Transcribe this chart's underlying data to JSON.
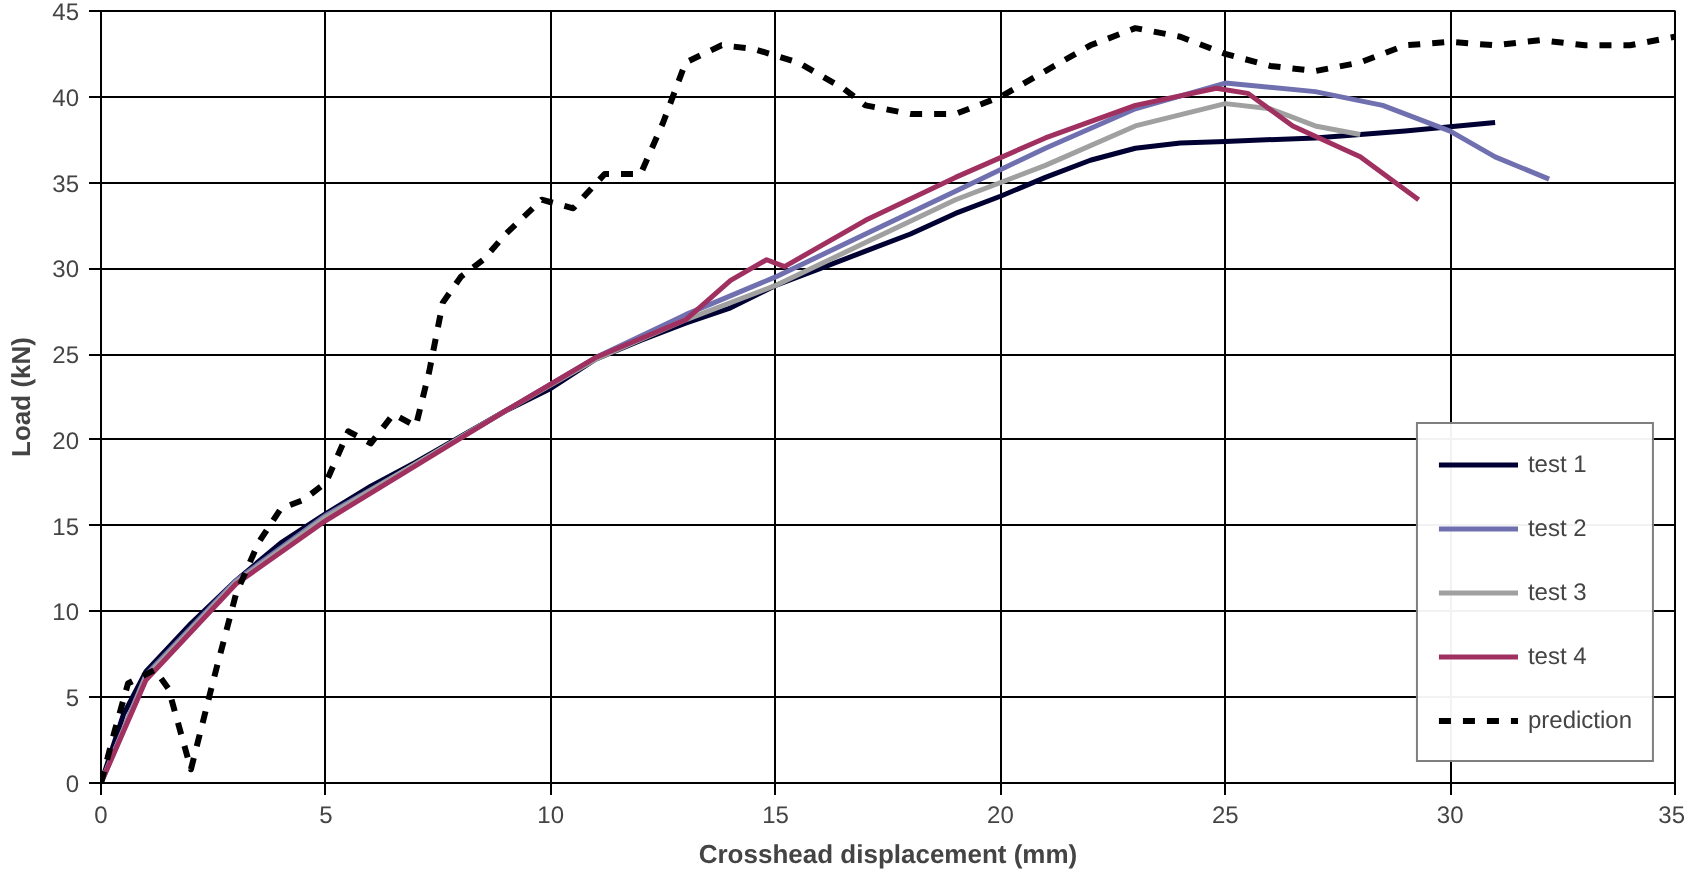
{
  "chart_data": {
    "type": "line",
    "xlabel": "Crosshead displacement (mm)",
    "ylabel": "Load (kN)",
    "xlim": [
      0,
      35
    ],
    "xticks": [
      0,
      5,
      10,
      15,
      20,
      25,
      30,
      35
    ],
    "ylim": [
      0,
      45
    ],
    "yticks": [
      0,
      5,
      10,
      15,
      20,
      25,
      30,
      35,
      40,
      45
    ],
    "grid": true,
    "legend": "bottom right",
    "marker": "none",
    "series": [
      {
        "name": "test 1",
        "color": "#000033",
        "line_style": "solid",
        "x": [
          0,
          0.5,
          1,
          2,
          3,
          4,
          5,
          6,
          7,
          8,
          9,
          10,
          11,
          12,
          13,
          14,
          15,
          16,
          17,
          18,
          19,
          20,
          21,
          22,
          23,
          24,
          25,
          27,
          29,
          31
        ],
        "values": [
          0,
          4,
          6.5,
          9.3,
          11.8,
          14,
          15.7,
          17.3,
          18.7,
          20.2,
          21.7,
          23,
          24.7,
          25.8,
          26.8,
          27.7,
          29,
          30,
          31,
          32,
          33.2,
          34.2,
          35.3,
          36.3,
          37,
          37.3,
          37.4,
          37.6,
          38,
          38.5
        ]
      },
      {
        "name": "test 2",
        "color": "#7070b0",
        "line_style": "solid",
        "x": [
          0,
          1,
          3,
          5,
          7,
          9,
          11,
          13,
          15,
          17,
          19,
          21,
          23,
          25,
          27,
          28.5,
          30,
          31,
          32.2
        ],
        "values": [
          0,
          6.3,
          11.8,
          15.6,
          18.6,
          21.7,
          24.8,
          27.3,
          29.5,
          32,
          34.5,
          37,
          39.3,
          40.8,
          40.3,
          39.5,
          38,
          36.5,
          35.2
        ]
      },
      {
        "name": "test 3",
        "color": "#a0a0a0",
        "line_style": "solid",
        "x": [
          0,
          1,
          3,
          5,
          7,
          9,
          11,
          13,
          15,
          17,
          19,
          21,
          23,
          25,
          26,
          27,
          28
        ],
        "values": [
          0,
          6.2,
          11.7,
          15.5,
          18.6,
          21.7,
          24.7,
          27,
          29,
          31.5,
          34,
          36,
          38.3,
          39.6,
          39.3,
          38.3,
          37.8
        ]
      },
      {
        "name": "test 4",
        "color": "#a03060",
        "line_style": "solid",
        "x": [
          0,
          1,
          3,
          5,
          7,
          9,
          11,
          13,
          14,
          14.8,
          15.2,
          17,
          19,
          21,
          23,
          24.8,
          25.5,
          26.5,
          28,
          29.3
        ],
        "values": [
          0,
          6,
          11.6,
          15.3,
          18.5,
          21.7,
          24.8,
          27,
          29.3,
          30.5,
          30.1,
          32.8,
          35.3,
          37.6,
          39.5,
          40.5,
          40.2,
          38.3,
          36.5,
          34
        ]
      },
      {
        "name": "prediction",
        "color": "#000000",
        "line_style": "dashed",
        "x": [
          0,
          0.3,
          0.6,
          1.2,
          1.5,
          2,
          2.5,
          3,
          3.5,
          4,
          4.5,
          5,
          5.5,
          6,
          6.5,
          7,
          7.3,
          7.6,
          8,
          8.5,
          9,
          9.8,
          10.5,
          11.2,
          12,
          12.5,
          13,
          13.8,
          14.5,
          15.5,
          16.5,
          17,
          18,
          19,
          19.5,
          20,
          21,
          22,
          23,
          24,
          25,
          26,
          27,
          28,
          29,
          30,
          31,
          32,
          33,
          34,
          35
        ],
        "values": [
          0,
          3,
          5.8,
          6.6,
          5.5,
          0.8,
          6,
          11,
          14,
          16,
          16.5,
          17.5,
          20.5,
          19.8,
          21.5,
          20.8,
          24,
          28,
          29.5,
          30.5,
          32,
          34,
          33.5,
          35.5,
          35.5,
          38.5,
          42,
          43,
          42.8,
          42,
          40.5,
          39.5,
          39,
          39,
          39.5,
          40,
          41.5,
          43,
          44,
          43.5,
          42.5,
          41.8,
          41.5,
          42,
          43,
          43.2,
          43,
          43.3,
          43,
          43,
          43.5
        ]
      }
    ]
  }
}
